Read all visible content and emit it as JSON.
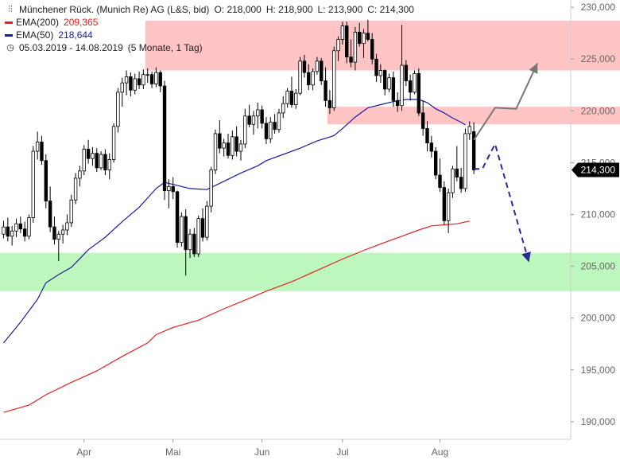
{
  "legend": {
    "title": "Münchener Rück. (Munich Re) AG (L&S, bid)",
    "open": "O: 218,000",
    "high": "H: 218,900",
    "low": "L: 213,900",
    "close": "C: 214,300",
    "ema200_label": "EMA(200)",
    "ema200_value": "209,365",
    "ema50_label": "EMA(50)",
    "ema50_value": "218,644",
    "period": "05.03.2019 - 14.08.2019",
    "period_note": "(5 Monate, 1 Tag)"
  },
  "colors": {
    "resistance_zone": "#ffc4c4",
    "support_zone": "#bdf7bd",
    "ema200": "#e32222",
    "ema50": "#1a1aa0",
    "candle": "#000000",
    "up_arrow": "#777777",
    "down_arrow": "#2a2a9a",
    "price_tag": "#000000"
  },
  "chart_data": {
    "type": "candlestick",
    "y_axis_side": "right",
    "ylim": [
      188300,
      230700
    ],
    "xlim": [
      0,
      112
    ],
    "y_ticks": [
      190000,
      195000,
      200000,
      205000,
      210000,
      215000,
      220000,
      225000,
      230000
    ],
    "y_tick_labels": [
      "190,000",
      "195,000",
      "200,000",
      "205,000",
      "210,000",
      "215,000",
      "220,000",
      "225,000",
      "230,000"
    ],
    "x_ticks": [
      {
        "label": "Apr",
        "x": 19
      },
      {
        "label": "Mai",
        "x": 40
      },
      {
        "label": "Jun",
        "x": 61
      },
      {
        "label": "Jul",
        "x": 80
      },
      {
        "label": "Aug",
        "x": 103
      }
    ],
    "last_price_label": "214,300",
    "last_price": 214300,
    "ohlc": [
      [
        208100,
        209400,
        207700,
        208800
      ],
      [
        208800,
        209700,
        207400,
        207900
      ],
      [
        207900,
        208900,
        207000,
        208400
      ],
      [
        208400,
        209600,
        207800,
        209100
      ],
      [
        209100,
        209800,
        208200,
        208600
      ],
      [
        208600,
        209300,
        207400,
        207900
      ],
      [
        207900,
        210000,
        207600,
        209700
      ],
      [
        209700,
        216600,
        209200,
        216100
      ],
      [
        216100,
        218000,
        215300,
        217000
      ],
      [
        217000,
        217600,
        214800,
        215200
      ],
      [
        215200,
        215800,
        210600,
        211300
      ],
      [
        211300,
        212700,
        208300,
        208800
      ],
      [
        208800,
        209800,
        207100,
        207600
      ],
      [
        207600,
        208400,
        205500,
        208100
      ],
      [
        208100,
        209000,
        207200,
        208500
      ],
      [
        208500,
        210000,
        208000,
        209200
      ],
      [
        209200,
        211900,
        208800,
        211400
      ],
      [
        211400,
        214000,
        211000,
        213500
      ],
      [
        213500,
        214700,
        212700,
        214200
      ],
      [
        214200,
        216700,
        213800,
        216300
      ],
      [
        216300,
        217200,
        214900,
        215400
      ],
      [
        215400,
        216500,
        214700,
        215900
      ],
      [
        215900,
        216400,
        214100,
        214500
      ],
      [
        214500,
        216100,
        214300,
        215800
      ],
      [
        215800,
        216300,
        213800,
        214300
      ],
      [
        214300,
        215900,
        213400,
        215300
      ],
      [
        215300,
        218800,
        215000,
        218500
      ],
      [
        218500,
        222200,
        217900,
        221800
      ],
      [
        221800,
        223200,
        220400,
        222700
      ],
      [
        222700,
        223900,
        221500,
        223300
      ],
      [
        223300,
        223700,
        221400,
        222000
      ],
      [
        222000,
        223600,
        221600,
        223100
      ],
      [
        223100,
        223800,
        222100,
        222500
      ],
      [
        222500,
        224000,
        222100,
        223500
      ],
      [
        223500,
        224100,
        222700,
        223500
      ],
      [
        223500,
        223800,
        222200,
        222600
      ],
      [
        222600,
        224200,
        222300,
        223700
      ],
      [
        223700,
        223900,
        221800,
        222400
      ],
      [
        222400,
        222900,
        211400,
        212300
      ],
      [
        212300,
        213400,
        210600,
        212700
      ],
      [
        212700,
        213600,
        211500,
        212200
      ],
      [
        212200,
        212300,
        206800,
        207300
      ],
      [
        207300,
        210200,
        206900,
        209800
      ],
      [
        209800,
        210500,
        204100,
        206600
      ],
      [
        206600,
        208600,
        205800,
        208100
      ],
      [
        208100,
        208700,
        205900,
        206200
      ],
      [
        206200,
        209900,
        205900,
        209600
      ],
      [
        209600,
        210600,
        207400,
        207800
      ],
      [
        207800,
        211300,
        207500,
        210800
      ],
      [
        210800,
        214600,
        210200,
        214300
      ],
      [
        214300,
        218200,
        213900,
        217800
      ],
      [
        217800,
        219100,
        215900,
        216400
      ],
      [
        216400,
        217300,
        215600,
        216900
      ],
      [
        216900,
        217800,
        215400,
        215700
      ],
      [
        215700,
        218100,
        215300,
        217500
      ],
      [
        217500,
        218500,
        215600,
        216100
      ],
      [
        216100,
        217200,
        215200,
        216800
      ],
      [
        216800,
        220200,
        216400,
        219500
      ],
      [
        219500,
        220600,
        218400,
        218700
      ],
      [
        218700,
        220000,
        217700,
        219500
      ],
      [
        219500,
        220800,
        218300,
        220100
      ],
      [
        220100,
        220500,
        218300,
        218800
      ],
      [
        218800,
        219400,
        216800,
        217300
      ],
      [
        217300,
        219400,
        216900,
        218900
      ],
      [
        218900,
        219700,
        217800,
        218200
      ],
      [
        218200,
        220200,
        217900,
        219800
      ],
      [
        219800,
        221400,
        219300,
        220700
      ],
      [
        220700,
        222200,
        220300,
        221900
      ],
      [
        221900,
        223300,
        220300,
        220600
      ],
      [
        220600,
        222100,
        220200,
        221700
      ],
      [
        221700,
        225200,
        221500,
        224800
      ],
      [
        224800,
        225400,
        223200,
        223700
      ],
      [
        223700,
        224500,
        222000,
        222500
      ],
      [
        222500,
        224100,
        222000,
        223800
      ],
      [
        223800,
        225200,
        223500,
        224800
      ],
      [
        224800,
        225100,
        222500,
        222900
      ],
      [
        222900,
        224200,
        220400,
        221000
      ],
      [
        221000,
        222000,
        219700,
        220300
      ],
      [
        220300,
        226200,
        220000,
        225800
      ],
      [
        225800,
        227200,
        224800,
        226900
      ],
      [
        226900,
        228600,
        226400,
        228200
      ],
      [
        228200,
        228600,
        224600,
        225200
      ],
      [
        225200,
        226900,
        224200,
        224700
      ],
      [
        224700,
        228100,
        223900,
        227600
      ],
      [
        227600,
        228500,
        226200,
        226500
      ],
      [
        226500,
        227900,
        225100,
        227500
      ],
      [
        227500,
        228800,
        226700,
        226900
      ],
      [
        226900,
        227500,
        224500,
        225000
      ],
      [
        225000,
        225500,
        222800,
        223400
      ],
      [
        223400,
        224500,
        222700,
        223900
      ],
      [
        223900,
        224000,
        221500,
        222100
      ],
      [
        222100,
        223600,
        221800,
        223200
      ],
      [
        223200,
        223800,
        220400,
        221000
      ],
      [
        221000,
        221800,
        219900,
        220500
      ],
      [
        220500,
        228300,
        220000,
        224400
      ],
      [
        224400,
        224900,
        222400,
        222900
      ],
      [
        222900,
        223500,
        221000,
        221800
      ],
      [
        221800,
        223900,
        221600,
        223600
      ],
      [
        223600,
        224100,
        219500,
        219800
      ],
      [
        219800,
        221000,
        217600,
        218300
      ],
      [
        218300,
        219000,
        216100,
        216900
      ],
      [
        216900,
        217600,
        215500,
        216100
      ],
      [
        216100,
        216500,
        213400,
        213800
      ],
      [
        213800,
        215400,
        212200,
        212600
      ],
      [
        212600,
        213200,
        209000,
        209400
      ],
      [
        209400,
        212500,
        208200,
        212100
      ],
      [
        212100,
        214700,
        211600,
        214400
      ],
      [
        214400,
        216600,
        213200,
        213600
      ],
      [
        213600,
        214500,
        212100,
        212500
      ],
      [
        212500,
        218300,
        212200,
        217800
      ],
      [
        217800,
        219000,
        217200,
        218500
      ],
      [
        218000,
        218900,
        213900,
        214300
      ]
    ],
    "ema50": [
      [
        0,
        197600
      ],
      [
        4,
        199600
      ],
      [
        8,
        201800
      ],
      [
        10,
        203400
      ],
      [
        13,
        204200
      ],
      [
        16,
        204900
      ],
      [
        20,
        206600
      ],
      [
        24,
        207800
      ],
      [
        28,
        209300
      ],
      [
        32,
        210700
      ],
      [
        36,
        212500
      ],
      [
        38,
        213100
      ],
      [
        40,
        212900
      ],
      [
        44,
        212500
      ],
      [
        48,
        212400
      ],
      [
        52,
        213200
      ],
      [
        56,
        214000
      ],
      [
        60,
        214700
      ],
      [
        62,
        215200
      ],
      [
        66,
        215800
      ],
      [
        70,
        216400
      ],
      [
        74,
        217100
      ],
      [
        78,
        217600
      ],
      [
        80,
        218300
      ],
      [
        83,
        219400
      ],
      [
        86,
        220300
      ],
      [
        89,
        220600
      ],
      [
        92,
        220900
      ],
      [
        95,
        221100
      ],
      [
        98,
        221100
      ],
      [
        100,
        220800
      ],
      [
        102,
        220200
      ],
      [
        104,
        219800
      ],
      [
        106,
        219300
      ],
      [
        108,
        218900
      ],
      [
        109,
        218644
      ]
    ],
    "ema200": [
      [
        0,
        190900
      ],
      [
        6,
        191600
      ],
      [
        10,
        192600
      ],
      [
        16,
        193800
      ],
      [
        22,
        194900
      ],
      [
        28,
        196300
      ],
      [
        34,
        197600
      ],
      [
        36,
        198400
      ],
      [
        40,
        199100
      ],
      [
        46,
        199800
      ],
      [
        52,
        200900
      ],
      [
        58,
        201900
      ],
      [
        62,
        202600
      ],
      [
        68,
        203500
      ],
      [
        74,
        204600
      ],
      [
        80,
        205700
      ],
      [
        86,
        206700
      ],
      [
        90,
        207300
      ],
      [
        94,
        207900
      ],
      [
        98,
        208500
      ],
      [
        101,
        208900
      ],
      [
        104,
        209000
      ],
      [
        107,
        209100
      ],
      [
        110,
        209365
      ]
    ],
    "zones": [
      {
        "name": "resistance-upper",
        "y": [
          223900,
          228700
        ],
        "x": [
          34,
          112
        ]
      },
      {
        "name": "resistance-lower",
        "y": [
          218700,
          220400
        ],
        "x": [
          77,
          112
        ]
      },
      {
        "name": "support",
        "y": [
          202600,
          206300
        ],
        "x": [
          0,
          112
        ]
      }
    ],
    "scenario_up": [
      [
        111,
        217200
      ],
      [
        116,
        220300
      ],
      [
        121,
        220200
      ],
      [
        126,
        224600
      ]
    ],
    "scenario_down": [
      [
        111,
        214400
      ],
      [
        113,
        214400
      ],
      [
        116,
        216800
      ],
      [
        124,
        205400
      ]
    ]
  }
}
